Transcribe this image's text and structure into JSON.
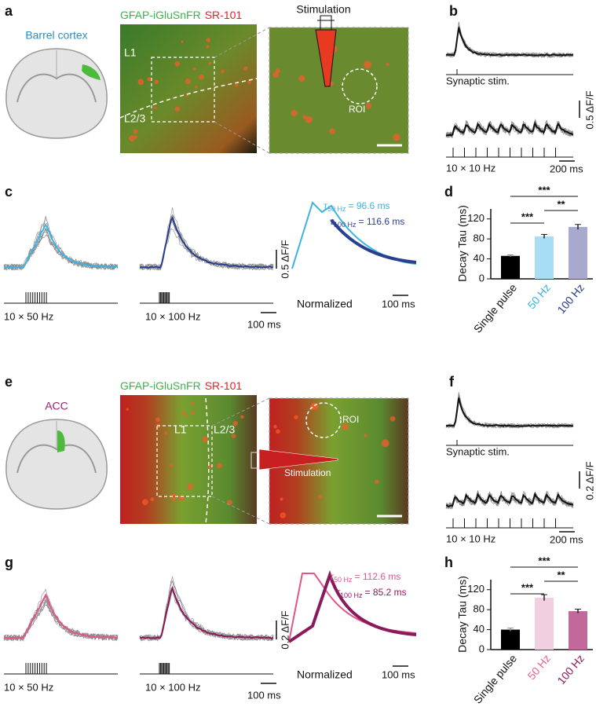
{
  "top": {
    "panel_labels": [
      "a",
      "b",
      "c",
      "d"
    ],
    "region": "Barrel cortex",
    "image_labels": {
      "indicator": "GFAP-iGluSnFR",
      "dye": "SR-101",
      "layer1": "L1",
      "layer2": "L2/3",
      "stimulation": "Stimulation",
      "roi": "ROI"
    },
    "traces": {
      "single_label": "Synaptic stim.",
      "train_label": "10 × 10 Hz",
      "scale_y": "0.5 ΔF/F",
      "scale_x": "200 ms"
    },
    "frequency": {
      "label_50": "10 × 50 Hz",
      "label_100": "10 × 100 Hz",
      "scale_y": "0.5 ΔF/F",
      "scale_x": "100 ms",
      "tau_50": {
        "symbol": "τ",
        "sub": "50 Hz",
        "text": "= 96.6 ms"
      },
      "tau_100": {
        "symbol": "τ",
        "sub": "100 Hz",
        "text": "= 116.6 ms"
      },
      "normalized": "Normalized",
      "norm_scale_x": "100 ms"
    },
    "decay": {
      "ylabel": "Decay Tau (ms)",
      "categories": [
        "Single pulse",
        "50 Hz",
        "100 Hz"
      ],
      "values": [
        46,
        85,
        104
      ],
      "errors": [
        2,
        4,
        5
      ],
      "colors": [
        "#000000",
        "#a8def5",
        "#a9a8cf"
      ],
      "label_colors": [
        "#111111",
        "#3ab4e0",
        "#2a3a8c"
      ],
      "ylim": [
        0,
        140
      ],
      "yticks": [
        0,
        40,
        80,
        120
      ],
      "significance": [
        "***",
        "***",
        "**"
      ]
    }
  },
  "bottom": {
    "panel_labels": [
      "e",
      "f",
      "g",
      "h"
    ],
    "region": "ACC",
    "image_labels": {
      "indicator": "GFAP-iGluSnFR",
      "dye": "SR-101",
      "layer1": "L1",
      "layer2": "L2/3",
      "stimulation": "Stimulation",
      "roi": "ROI"
    },
    "traces": {
      "single_label": "Synaptic stim.",
      "train_label": "10 × 10 Hz",
      "scale_y": "0.2 ΔF/F",
      "scale_x": "200 ms"
    },
    "frequency": {
      "label_50": "10 × 50 Hz",
      "label_100": "10 × 100 Hz",
      "scale_y": "0.2 ΔF/F",
      "scale_x": "100 ms",
      "tau_50": {
        "symbol": "τ",
        "sub": "50 Hz",
        "text": "= 112.6 ms"
      },
      "tau_100": {
        "symbol": "τ",
        "sub": "100 Hz",
        "text": "= 85.2 ms"
      },
      "normalized": "Normalized",
      "norm_scale_x": "100 ms"
    },
    "decay": {
      "ylabel": "Decay Tau (ms)",
      "categories": [
        "Single pulse",
        "50 Hz",
        "100 Hz"
      ],
      "values": [
        40,
        104,
        77
      ],
      "errors": [
        3,
        6,
        4
      ],
      "colors": [
        "#000000",
        "#f2cfe0",
        "#c2689a"
      ],
      "label_colors": [
        "#111111",
        "#e8648e",
        "#8a1a5a"
      ],
      "ylim": [
        0,
        140
      ],
      "yticks": [
        0,
        40,
        80,
        120
      ],
      "significance": [
        "***",
        "***",
        "**"
      ]
    }
  }
}
